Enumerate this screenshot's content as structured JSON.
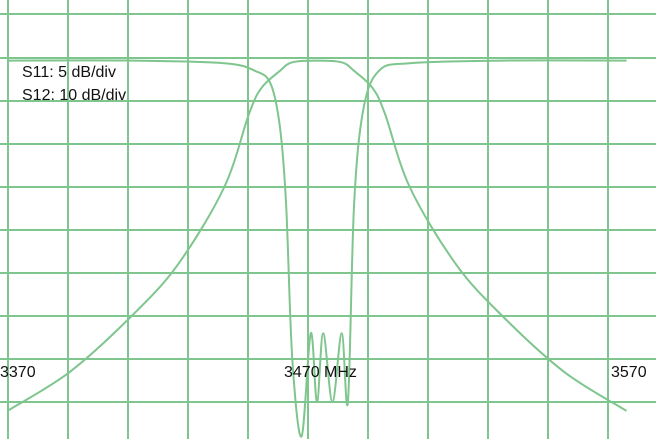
{
  "chart_data": {
    "type": "line",
    "grid": true,
    "x_ticks": [
      "3370",
      "3470 MHz",
      "3570"
    ],
    "annotations": [
      "S11: 5 dB/div",
      "S12: 10 dB/div"
    ],
    "colors": {
      "trace": "#7fc58e",
      "grid": "#7fc58e",
      "background": "#ffffff"
    },
    "x_range_mhz": [
      3370,
      3570
    ],
    "series": [
      {
        "scale_db_per_div": 5,
        "x_mhz": [
          3370,
          3410,
          3440,
          3450,
          3455,
          3458,
          3460,
          3462,
          3465,
          3468,
          3470,
          3472,
          3475,
          3478,
          3480,
          3482,
          3485,
          3490,
          3500,
          3530,
          3570
        ],
        "values_db": [
          -0.3,
          -0.3,
          -0.6,
          -1.5,
          -3,
          -8,
          -17,
          -35,
          -44,
          -32,
          -40,
          -32,
          -40,
          -32,
          -40,
          -17,
          -6,
          -1.5,
          -0.6,
          -0.3,
          -0.3
        ]
      },
      {
        "scale_db_per_div": 10,
        "x_mhz": [
          3370,
          3390,
          3410,
          3425,
          3440,
          3448,
          3452,
          3458,
          3462,
          3470,
          3478,
          3482,
          3488,
          3492,
          3500,
          3515,
          3530,
          3550,
          3570
        ],
        "values_db": [
          -82,
          -73,
          -60,
          -48,
          -30,
          -13,
          -7,
          -3,
          -1,
          -0.6,
          -1,
          -3,
          -7,
          -13,
          -30,
          -48,
          -60,
          -73,
          -82
        ]
      }
    ]
  }
}
